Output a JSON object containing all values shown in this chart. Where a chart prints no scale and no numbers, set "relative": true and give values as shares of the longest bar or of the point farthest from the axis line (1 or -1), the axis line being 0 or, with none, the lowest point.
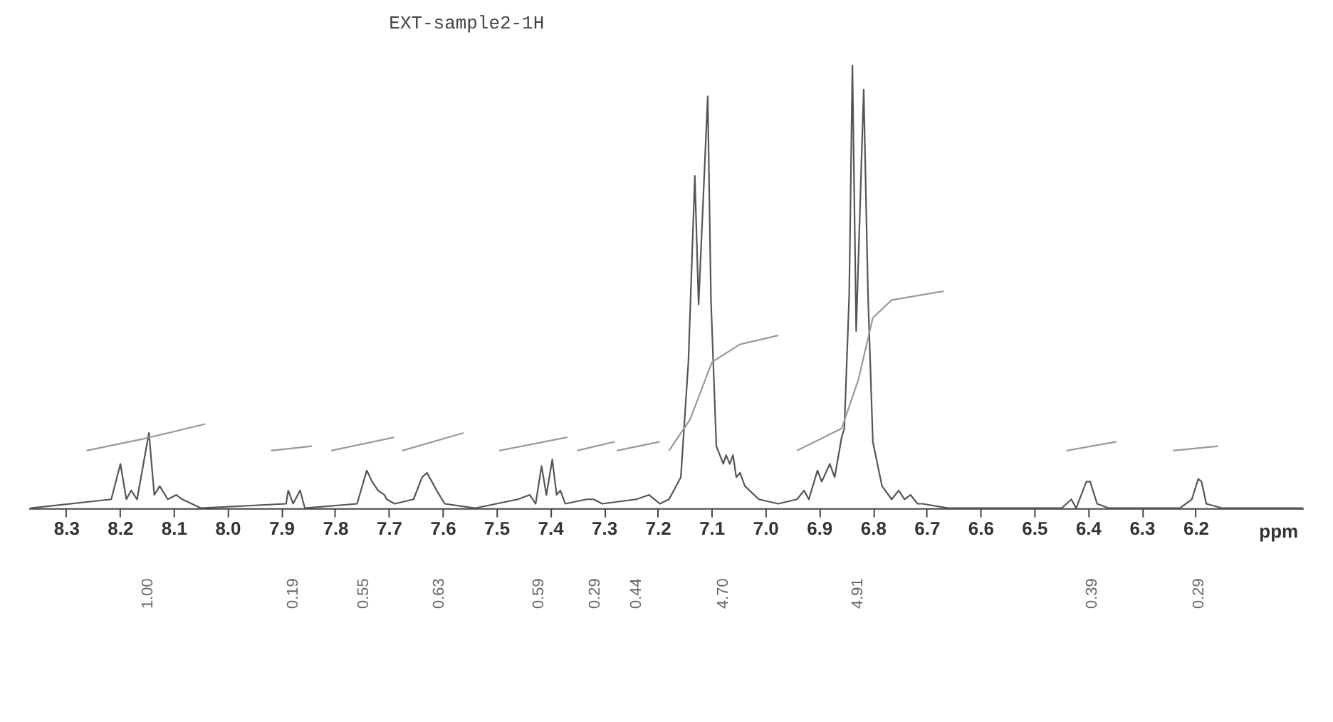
{
  "chart_data": {
    "type": "line",
    "title": "EXT-sample2-1H",
    "xlabel": "ppm",
    "relative": true,
    "xlim": [
      8.37,
      6.0
    ],
    "xticks": [
      8.3,
      8.2,
      8.1,
      {
        "value": 8,
        "label": "8.0"
      },
      7.9,
      7.8,
      7.7,
      7.6,
      7.5,
      7.4,
      7.3,
      7.2,
      7.1,
      {
        "value": 7,
        "label": "7.0"
      },
      6.9,
      6.8,
      6.7,
      6.6,
      6.5,
      6.4,
      6.3,
      6.2
    ],
    "grid": false,
    "marker": "none",
    "line_style": "solid",
    "series": [
      {
        "color": "#555555",
        "x": [
          8.366,
          8.216,
          8.199,
          8.188,
          8.179,
          8.168,
          8.146,
          8.136,
          8.126,
          8.111,
          8.095,
          8.084,
          8.049,
          7.891,
          7.887,
          7.878,
          7.865,
          7.856,
          7.759,
          7.741,
          7.731,
          7.72,
          7.708,
          7.704,
          7.689,
          7.654,
          7.638,
          7.629,
          7.62,
          7.611,
          7.596,
          7.54,
          7.46,
          7.438,
          7.427,
          7.416,
          7.407,
          7.396,
          7.388,
          7.381,
          7.372,
          7.332,
          7.319,
          7.303,
          7.24,
          7.216,
          7.196,
          7.179,
          7.157,
          7.143,
          7.131,
          7.124,
          7.107,
          7.101,
          7.091,
          7.078,
          7.073,
          7.066,
          7.06,
          7.054,
          7.047,
          7.038,
          7.012,
          6.976,
          6.941,
          6.928,
          6.919,
          6.903,
          6.895,
          6.88,
          6.871,
          6.858,
          6.853,
          6.844,
          6.838,
          6.831,
          6.817,
          6.809,
          6.8,
          6.783,
          6.765,
          6.752,
          6.741,
          6.73,
          6.717,
          6.708,
          6.66,
          6.501,
          6.449,
          6.431,
          6.422,
          6.403,
          6.396,
          6.383,
          6.361,
          6.308,
          6.229,
          6.207,
          6.195,
          6.189,
          6.18,
          6.15,
          6.0
        ],
        "values": [
          0.0,
          0.02,
          0.1,
          0.02,
          0.04,
          0.02,
          0.17,
          0.03,
          0.05,
          0.02,
          0.03,
          0.02,
          0.0,
          0.01,
          0.04,
          0.01,
          0.04,
          0.0,
          0.01,
          0.085,
          0.06,
          0.04,
          0.03,
          0.02,
          0.01,
          0.02,
          0.07,
          0.08,
          0.06,
          0.04,
          0.01,
          0.0,
          0.02,
          0.03,
          0.01,
          0.095,
          0.03,
          0.11,
          0.03,
          0.04,
          0.01,
          0.02,
          0.02,
          0.01,
          0.02,
          0.03,
          0.01,
          0.02,
          0.07,
          0.33,
          0.75,
          0.46,
          0.93,
          0.47,
          0.14,
          0.1,
          0.12,
          0.1,
          0.12,
          0.07,
          0.08,
          0.05,
          0.02,
          0.01,
          0.02,
          0.04,
          0.02,
          0.085,
          0.06,
          0.1,
          0.07,
          0.16,
          0.18,
          0.48,
          1.0,
          0.4,
          0.945,
          0.48,
          0.15,
          0.05,
          0.02,
          0.04,
          0.02,
          0.03,
          0.01,
          0.01,
          0.0,
          0.0,
          0.0,
          0.02,
          0.0,
          0.06,
          0.06,
          0.01,
          0.0,
          0.0,
          0.0,
          0.02,
          0.066,
          0.06,
          0.01,
          0.0,
          0.0
        ]
      },
      {
        "color": "#999999",
        "x": [
          8.262,
          8.155,
          8.041
        ],
        "values": [
          0.13,
          0.157,
          0.19
        ]
      },
      {
        "color": "#999999",
        "x": [
          7.919,
          7.843
        ],
        "values": [
          0.13,
          0.14
        ]
      },
      {
        "color": "#999999",
        "x": [
          7.807,
          7.69
        ],
        "values": [
          0.13,
          0.16
        ]
      },
      {
        "color": "#999999",
        "x": [
          7.675,
          7.561
        ],
        "values": [
          0.13,
          0.17
        ]
      },
      {
        "color": "#999999",
        "x": [
          7.495,
          7.368
        ],
        "values": [
          0.13,
          0.16
        ]
      },
      {
        "color": "#999999",
        "x": [
          7.35,
          7.28
        ],
        "values": [
          0.13,
          0.15
        ]
      },
      {
        "color": "#999999",
        "x": [
          7.276,
          7.196
        ],
        "values": [
          0.13,
          0.15
        ]
      },
      {
        "color": "#999999",
        "x": [
          7.179,
          7.14,
          7.099,
          7.047,
          6.976
        ],
        "values": [
          0.13,
          0.2,
          0.33,
          0.37,
          0.39
        ]
      },
      {
        "color": "#999999",
        "x": [
          6.941,
          6.858,
          6.827,
          6.8,
          6.765,
          6.668
        ],
        "values": [
          0.13,
          0.18,
          0.29,
          0.43,
          0.47,
          0.49
        ]
      },
      {
        "color": "#999999",
        "x": [
          6.44,
          6.347
        ],
        "values": [
          0.13,
          0.15
        ]
      },
      {
        "color": "#999999",
        "x": [
          6.242,
          6.158
        ],
        "values": [
          0.13,
          0.14
        ]
      }
    ],
    "annotations": [
      "1.00",
      "0.19",
      "0.55",
      "0.63",
      "0.59",
      "0.29",
      "0.44",
      "4.70",
      "4.91",
      "0.39",
      "0.29"
    ]
  }
}
